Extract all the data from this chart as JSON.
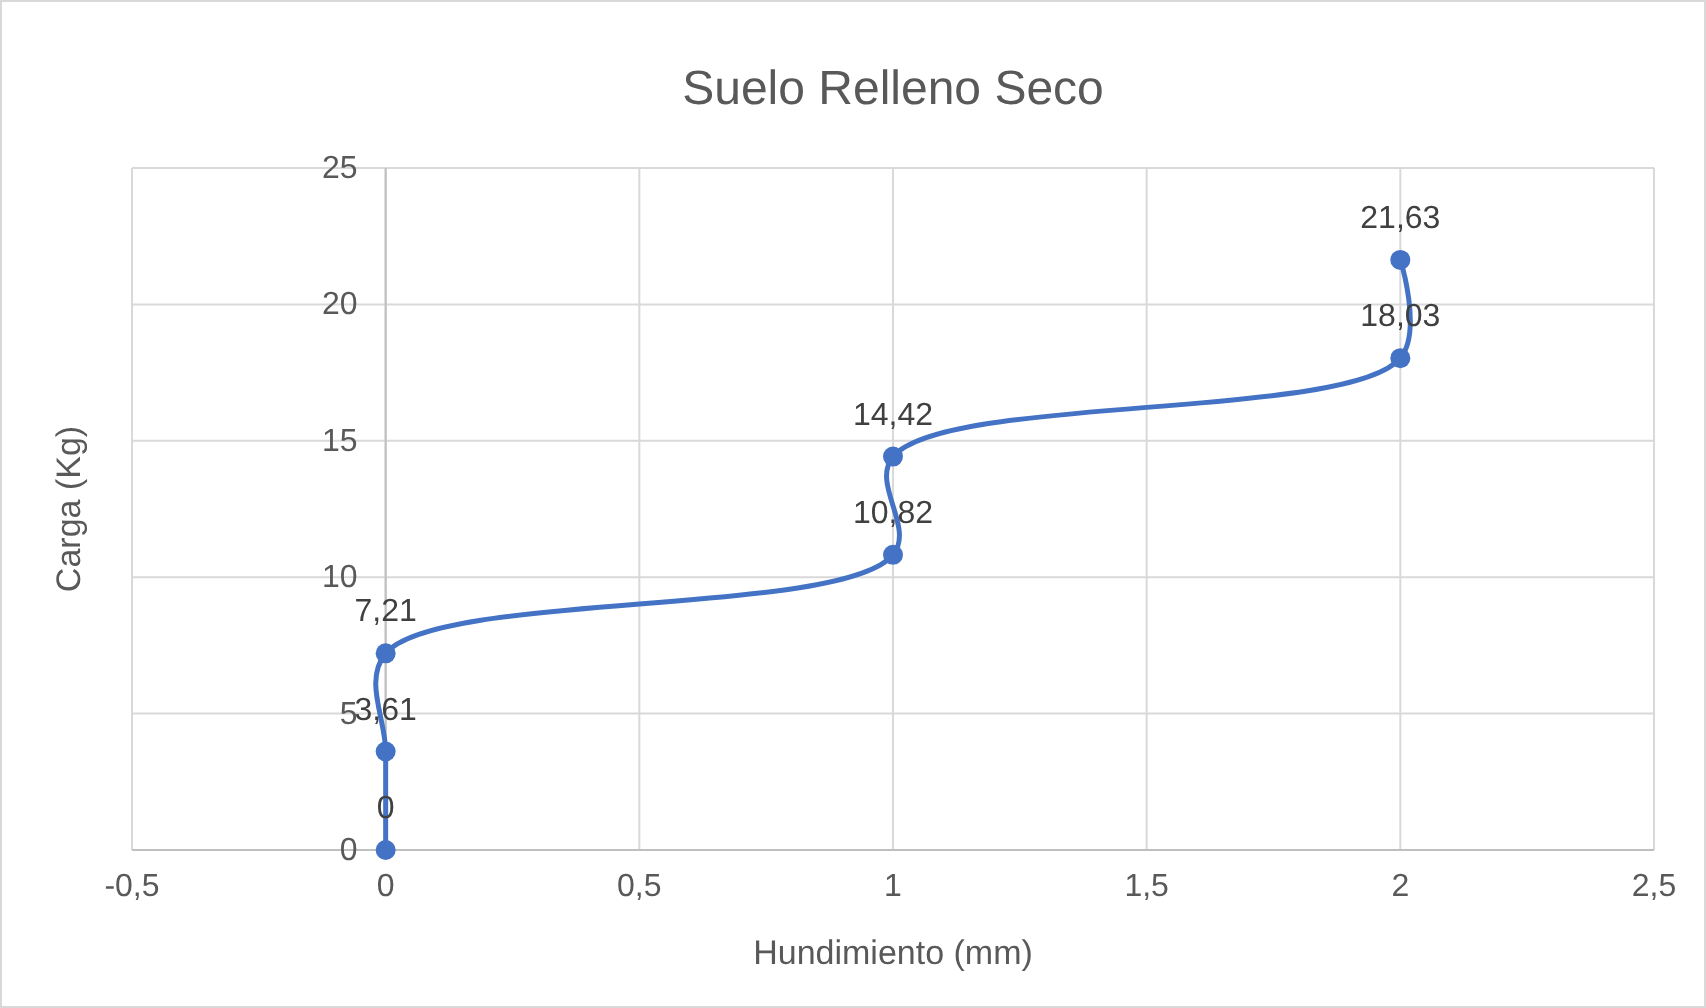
{
  "chart_data": {
    "type": "line",
    "title": "Suelo Relleno Seco",
    "xlabel": "Hundimiento (mm)",
    "ylabel": "Carga (Kg)",
    "x": [
      0,
      0,
      0,
      1,
      1,
      2,
      2
    ],
    "series": [
      {
        "color": "#4472c4",
        "values": [
          0,
          3.61,
          7.21,
          10.82,
          14.42,
          18.03,
          21.63
        ],
        "value_labels": [
          "0",
          "3,61",
          "7,21",
          "10,82",
          "14,42",
          "18,03",
          "21,63"
        ]
      }
    ],
    "xlim": [
      -0.5,
      2.5
    ],
    "xticks": [
      {
        "value": -0.5,
        "label": "-0,5"
      },
      0,
      {
        "value": 0.5,
        "label": "0,5"
      },
      1,
      {
        "value": 1.5,
        "label": "1,5"
      },
      2,
      {
        "value": 2.5,
        "label": "2,5"
      }
    ],
    "ylim": [
      0,
      25
    ],
    "yticks": [
      0,
      5,
      10,
      15,
      20,
      25
    ],
    "grid": true,
    "marker": "circle",
    "line_style": "solid"
  }
}
